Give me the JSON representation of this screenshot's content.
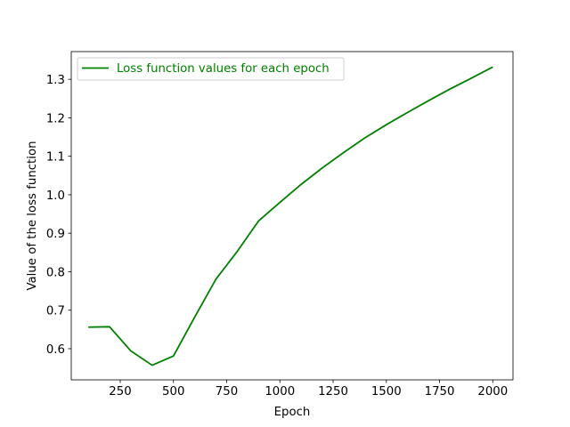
{
  "chart_data": {
    "type": "line",
    "title": "",
    "xlabel": "Epoch",
    "ylabel": "Value of the loss function",
    "xlim": [
      20,
      2095
    ],
    "ylim": [
      0.519,
      1.372
    ],
    "xticks": [
      250,
      500,
      750,
      1000,
      1250,
      1500,
      1750,
      2000
    ],
    "xtick_labels": [
      "250",
      "500",
      "750",
      "1000",
      "1250",
      "1500",
      "1750",
      "2000"
    ],
    "yticks": [
      0.6,
      0.7,
      0.8,
      0.9,
      1.0,
      1.1,
      1.2,
      1.3
    ],
    "ytick_labels": [
      "0.6",
      "0.7",
      "0.8",
      "0.9",
      "1.0",
      "1.1",
      "1.2",
      "1.3"
    ],
    "grid": false,
    "legend_position": "top-left",
    "series": [
      {
        "name": "Loss function values for each epoch",
        "color": "#008000",
        "x": [
          100,
          200,
          300,
          400,
          500,
          600,
          700,
          800,
          900,
          1000,
          1100,
          1200,
          1300,
          1400,
          1500,
          1600,
          1700,
          1800,
          1900,
          2000
        ],
        "y": [
          0.656,
          0.657,
          0.594,
          0.557,
          0.581,
          0.682,
          0.781,
          0.853,
          0.932,
          0.98,
          1.027,
          1.07,
          1.11,
          1.148,
          1.182,
          1.214,
          1.245,
          1.275,
          1.303,
          1.332
        ]
      }
    ]
  }
}
